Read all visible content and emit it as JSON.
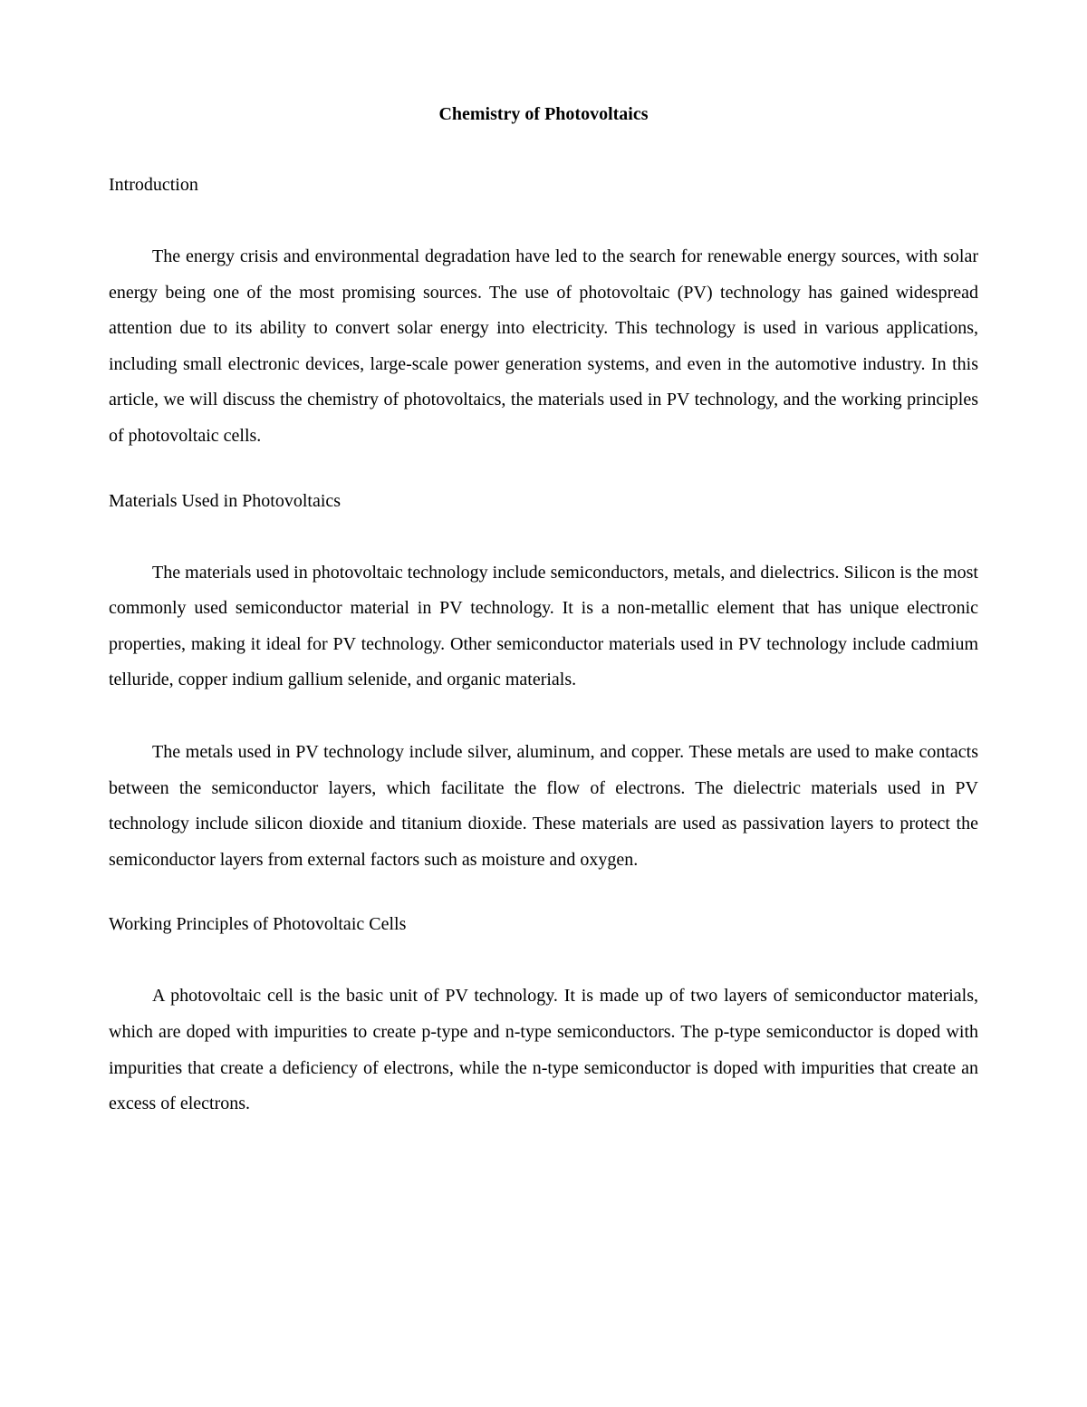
{
  "document": {
    "title": "Chemistry of Photovoltaics",
    "colors": {
      "background": "#ffffff",
      "text": "#000000"
    },
    "typography": {
      "font_family": "Times New Roman",
      "title_fontsize": 20,
      "title_fontweight": "bold",
      "heading_fontsize": 20,
      "body_fontsize": 20,
      "line_height": 1.98
    },
    "sections": [
      {
        "heading": "Introduction",
        "paragraphs": [
          "The energy crisis and environmental degradation have led to the search for renewable energy sources, with solar energy being one of the most promising sources. The use of photovoltaic (PV) technology has gained widespread attention due to its ability to convert solar energy into electricity. This technology is used in various applications, including small electronic devices, large-scale power generation systems, and even in the automotive industry. In this article, we will discuss the chemistry of photovoltaics, the materials used in PV technology, and the working principles of photovoltaic cells."
        ]
      },
      {
        "heading": "Materials Used in Photovoltaics",
        "paragraphs": [
          "The materials used in photovoltaic technology include semiconductors, metals, and dielectrics. Silicon is the most commonly used semiconductor material in PV technology. It is a non-metallic element that has unique electronic properties, making it ideal for PV technology. Other semiconductor materials used in PV technology include cadmium telluride, copper indium gallium selenide, and organic materials.",
          "The metals used in PV technology include silver, aluminum, and copper. These metals are used to make contacts between the semiconductor layers, which facilitate the flow of electrons. The dielectric materials used in PV technology include silicon dioxide and titanium dioxide. These materials are used as passivation layers to protect the semiconductor layers from external factors such as moisture and oxygen."
        ]
      },
      {
        "heading": "Working Principles of Photovoltaic Cells",
        "paragraphs": [
          "A photovoltaic cell is the basic unit of PV technology. It is made up of two layers of semiconductor materials, which are doped with impurities to create p-type and n-type semiconductors. The p-type semiconductor is doped with impurities that create a deficiency of electrons, while the n-type semiconductor is doped with impurities that create an excess of electrons."
        ]
      }
    ]
  }
}
